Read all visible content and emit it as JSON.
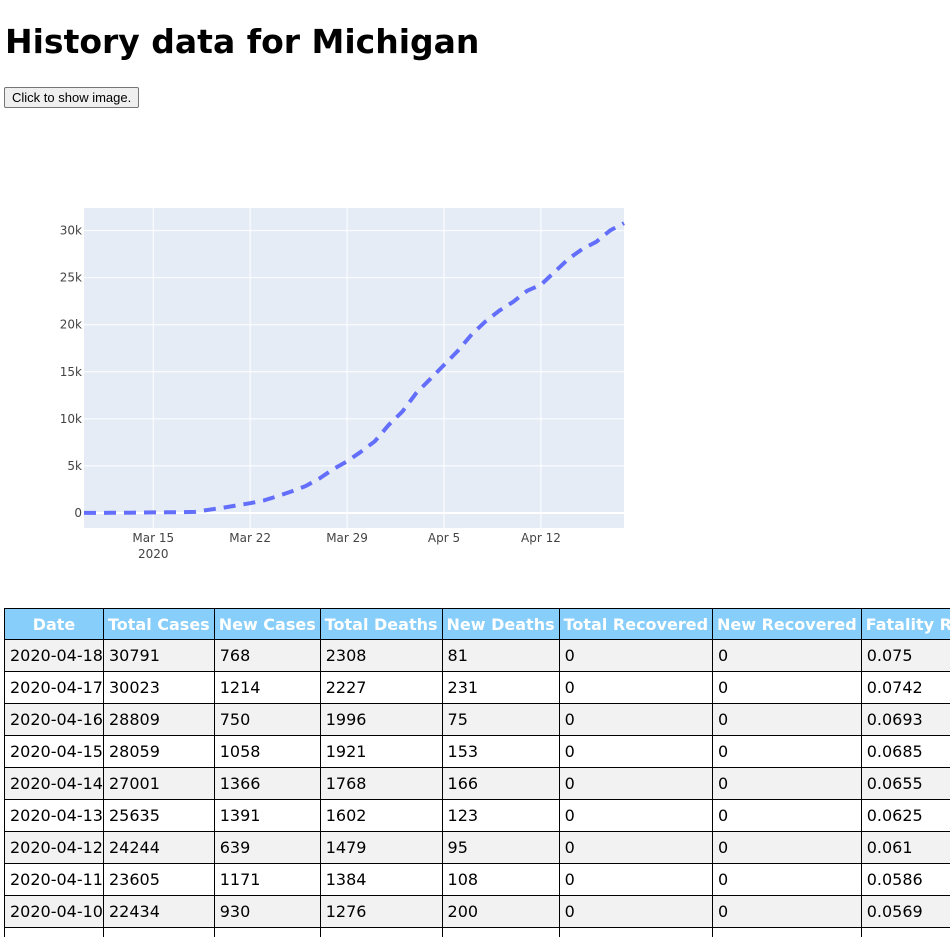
{
  "page": {
    "title": "History data for Michigan",
    "show_image_button": "Click to show image."
  },
  "chart_data": {
    "type": "line",
    "title": "",
    "xlabel": "",
    "ylabel": "",
    "x_ticks": [
      "Mar 15\n2020",
      "Mar 22",
      "Mar 29",
      "Apr 5",
      "Apr 12"
    ],
    "y_ticks": [
      "0",
      "5k",
      "10k",
      "15k",
      "20k",
      "25k",
      "30k"
    ],
    "ylim": [
      -1600,
      32400
    ],
    "xlim": [
      "2020-03-10",
      "2020-04-18"
    ],
    "grid": true,
    "line_style": "dashed",
    "colors": {
      "line": "#636efa",
      "plot_bg": "#e5ecf6",
      "grid": "#ffffff"
    },
    "series": [
      {
        "x": [
          "2020-03-10",
          "2020-03-11",
          "2020-03-12",
          "2020-03-13",
          "2020-03-14",
          "2020-03-15",
          "2020-03-16",
          "2020-03-17",
          "2020-03-18",
          "2020-03-19",
          "2020-03-20",
          "2020-03-21",
          "2020-03-22",
          "2020-03-23",
          "2020-03-24",
          "2020-03-25",
          "2020-03-26",
          "2020-03-27",
          "2020-03-28",
          "2020-03-29",
          "2020-03-30",
          "2020-03-31",
          "2020-04-01",
          "2020-04-02",
          "2020-04-03",
          "2020-04-04",
          "2020-04-05",
          "2020-04-06",
          "2020-04-07",
          "2020-04-08",
          "2020-04-09",
          "2020-04-10",
          "2020-04-11",
          "2020-04-12",
          "2020-04-13",
          "2020-04-14",
          "2020-04-15",
          "2020-04-16",
          "2020-04-17",
          "2020-04-18"
        ],
        "y": [
          0,
          2,
          12,
          25,
          33,
          53,
          65,
          80,
          110,
          336,
          549,
          787,
          1035,
          1328,
          1791,
          2294,
          2856,
          3657,
          4650,
          5486,
          6498,
          7615,
          9334,
          10791,
          12744,
          14225,
          15718,
          17221,
          18970,
          20346,
          21504,
          22434,
          23605,
          24244,
          25635,
          27001,
          28059,
          28809,
          30023,
          30791
        ]
      }
    ]
  },
  "table": {
    "headers": [
      "Date",
      "Total Cases",
      "New Cases",
      "Total Deaths",
      "New Deaths",
      "Total Recovered",
      "New Recovered",
      "Fatality Rate"
    ],
    "rows": [
      [
        "2020-04-18",
        "30791",
        "768",
        "2308",
        "81",
        "0",
        "0",
        "0.075"
      ],
      [
        "2020-04-17",
        "30023",
        "1214",
        "2227",
        "231",
        "0",
        "0",
        "0.0742"
      ],
      [
        "2020-04-16",
        "28809",
        "750",
        "1996",
        "75",
        "0",
        "0",
        "0.0693"
      ],
      [
        "2020-04-15",
        "28059",
        "1058",
        "1921",
        "153",
        "0",
        "0",
        "0.0685"
      ],
      [
        "2020-04-14",
        "27001",
        "1366",
        "1768",
        "166",
        "0",
        "0",
        "0.0655"
      ],
      [
        "2020-04-13",
        "25635",
        "1391",
        "1602",
        "123",
        "0",
        "0",
        "0.0625"
      ],
      [
        "2020-04-12",
        "24244",
        "639",
        "1479",
        "95",
        "0",
        "0",
        "0.061"
      ],
      [
        "2020-04-11",
        "23605",
        "1171",
        "1384",
        "108",
        "0",
        "0",
        "0.0586"
      ],
      [
        "2020-04-10",
        "22434",
        "930",
        "1276",
        "200",
        "0",
        "0",
        "0.0569"
      ],
      [
        "",
        "",
        "",
        "",
        "",
        "",
        "",
        ""
      ]
    ]
  }
}
